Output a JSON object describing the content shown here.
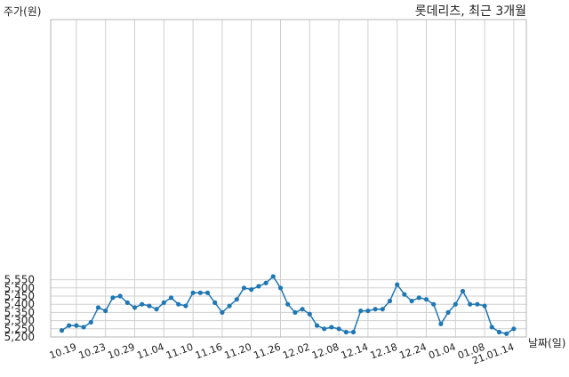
{
  "chart_data": {
    "type": "line",
    "title": "롯데리츠, 최근 3개월",
    "xlabel": "날짜(일)",
    "ylabel": "주가(원)",
    "ylim": [
      5200,
      5590
    ],
    "yticks": [
      5200,
      5250,
      5300,
      5350,
      5400,
      5450,
      5500,
      5550
    ],
    "ytick_labels": [
      "5,200",
      "5,250",
      "5,300",
      "5,350",
      "5,400",
      "5,450",
      "5,500",
      "5,550"
    ],
    "grid": true,
    "x_ticks": [
      {
        "index": 2,
        "label": "10.19"
      },
      {
        "index": 6,
        "label": "10.23"
      },
      {
        "index": 10,
        "label": "10.29"
      },
      {
        "index": 14,
        "label": "11.04"
      },
      {
        "index": 18,
        "label": "11.10"
      },
      {
        "index": 22,
        "label": "11.16"
      },
      {
        "index": 26,
        "label": "11.20"
      },
      {
        "index": 30,
        "label": "11.26"
      },
      {
        "index": 34,
        "label": "12.02"
      },
      {
        "index": 38,
        "label": "12.08"
      },
      {
        "index": 42,
        "label": "12.14"
      },
      {
        "index": 46,
        "label": "12.18"
      },
      {
        "index": 50,
        "label": "12.24"
      },
      {
        "index": 54,
        "label": "01.04"
      },
      {
        "index": 58,
        "label": "01.08"
      },
      {
        "index": 62,
        "label": "21.01.14"
      }
    ],
    "series": [
      {
        "color": "#1f77b4",
        "values": [
          5240,
          5270,
          5270,
          5260,
          5290,
          5380,
          5360,
          5440,
          5450,
          5410,
          5380,
          5400,
          5390,
          5370,
          5410,
          5440,
          5400,
          5390,
          5470,
          5470,
          5470,
          5410,
          5350,
          5390,
          5430,
          5500,
          5490,
          5510,
          5530,
          5570,
          5500,
          5400,
          5350,
          5370,
          5340,
          5270,
          5250,
          5260,
          5250,
          5230,
          5230,
          5360,
          5360,
          5370,
          5370,
          5420,
          5520,
          5460,
          5420,
          5440,
          5430,
          5400,
          5280,
          5350,
          5400,
          5480,
          5400,
          5400,
          5390,
          5260,
          5230,
          5220,
          5250
        ]
      }
    ]
  }
}
